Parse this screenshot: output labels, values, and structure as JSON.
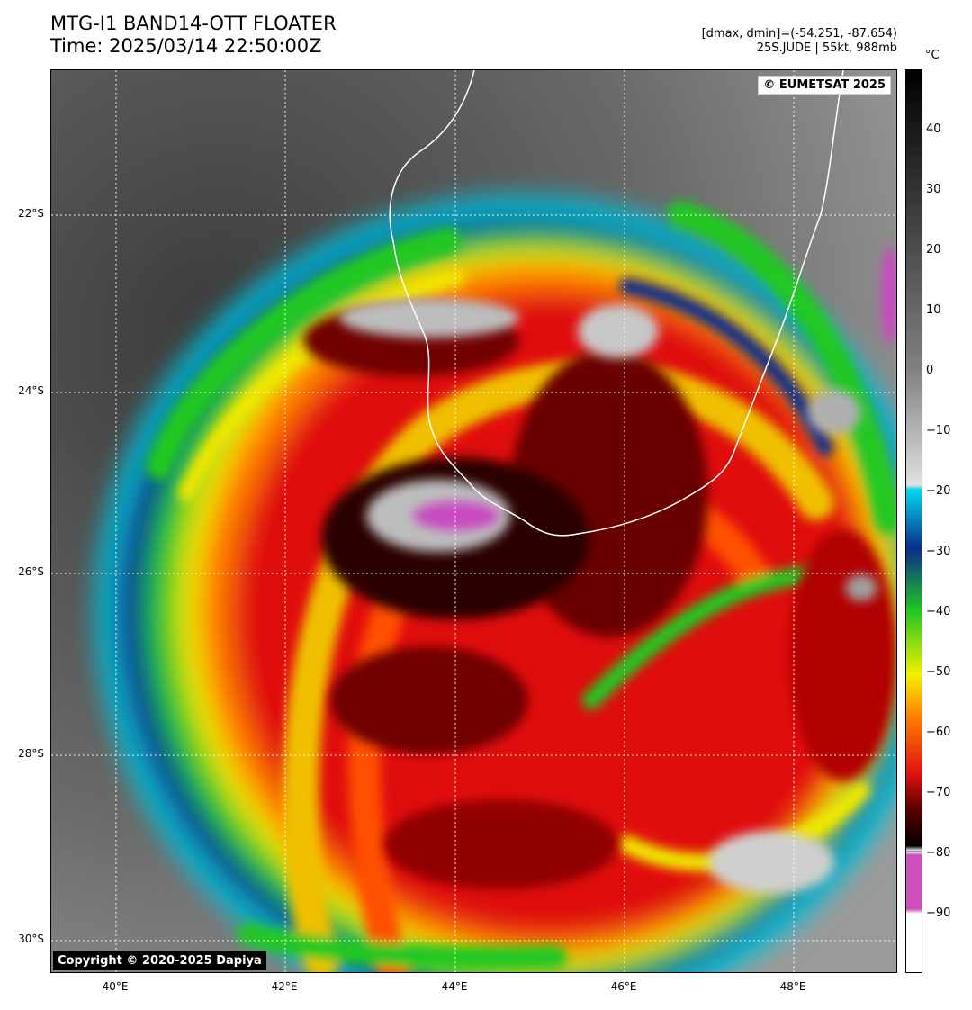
{
  "header": {
    "title": "MTG-I1 BAND14-OTT FLOATER",
    "time": "Time: 2025/03/14 22:50:00Z",
    "range": "[dmax, dmin]=(-54.251, -87.654)",
    "storm": "25S.JUDE | 55kt, 988mb"
  },
  "map": {
    "credit_top": "© EUMETSAT 2025",
    "credit_bottom": "Copyright © 2020-2025 Dapiya",
    "lat_labels": [
      "22°S",
      "24°S",
      "26°S",
      "28°S",
      "30°S"
    ],
    "lon_labels": [
      "40°E",
      "42°E",
      "44°E",
      "46°E",
      "48°E"
    ]
  },
  "colorbar": {
    "unit": "°C",
    "ticks": [
      "40",
      "30",
      "20",
      "10",
      "0",
      "−10",
      "−20",
      "−30",
      "−40",
      "−50",
      "−60",
      "−70",
      "−80",
      "−90"
    ],
    "colors": {
      "hot": "#000000",
      "neutral": "#808080",
      "cold": "#e0e0e0",
      "cyan": "#00d8f0",
      "blue": "#0a2d8c",
      "green": "#22c822",
      "yellow": "#f5f000",
      "orange": "#ff7800",
      "red": "#e01010",
      "darkred": "#5a0000",
      "magenta": "#d050c0"
    }
  }
}
